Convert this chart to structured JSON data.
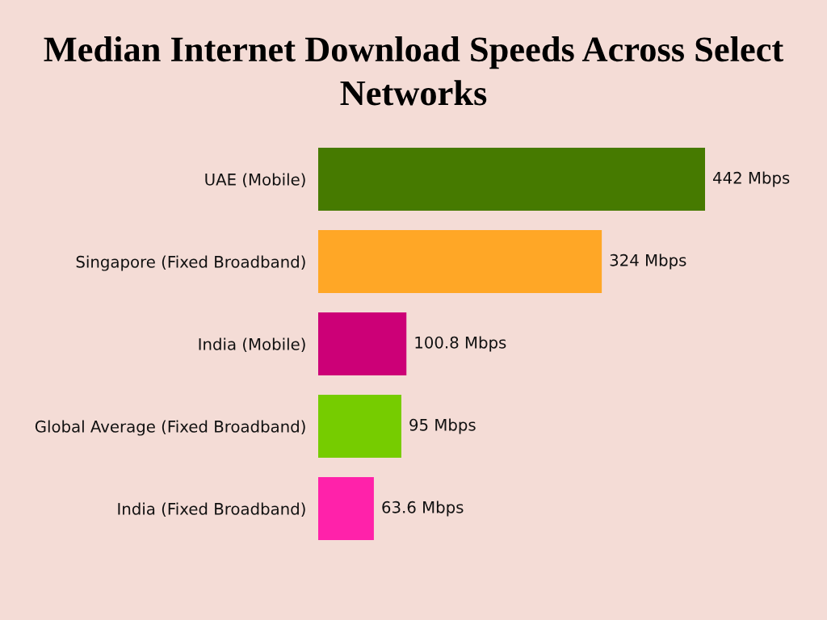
{
  "chart_data": {
    "type": "bar",
    "orientation": "horizontal",
    "title": "Median Internet Download Speeds Across Select Networks",
    "categories": [
      "UAE (Mobile)",
      "Singapore (Fixed Broadband)",
      "India (Mobile)",
      "Global Average (Fixed Broadband)",
      "India (Fixed Broadband)"
    ],
    "values": [
      442,
      324,
      100.8,
      95,
      63.6
    ],
    "colors": [
      "#467a00",
      "#ffa726",
      "#cc0077",
      "#76cc00",
      "#ff22aa"
    ],
    "value_labels": [
      "442 Mbps",
      "324 Mbps",
      "100.8 Mbps",
      "95 Mbps",
      "63.6 Mbps"
    ],
    "tick_labels": "y"
  }
}
